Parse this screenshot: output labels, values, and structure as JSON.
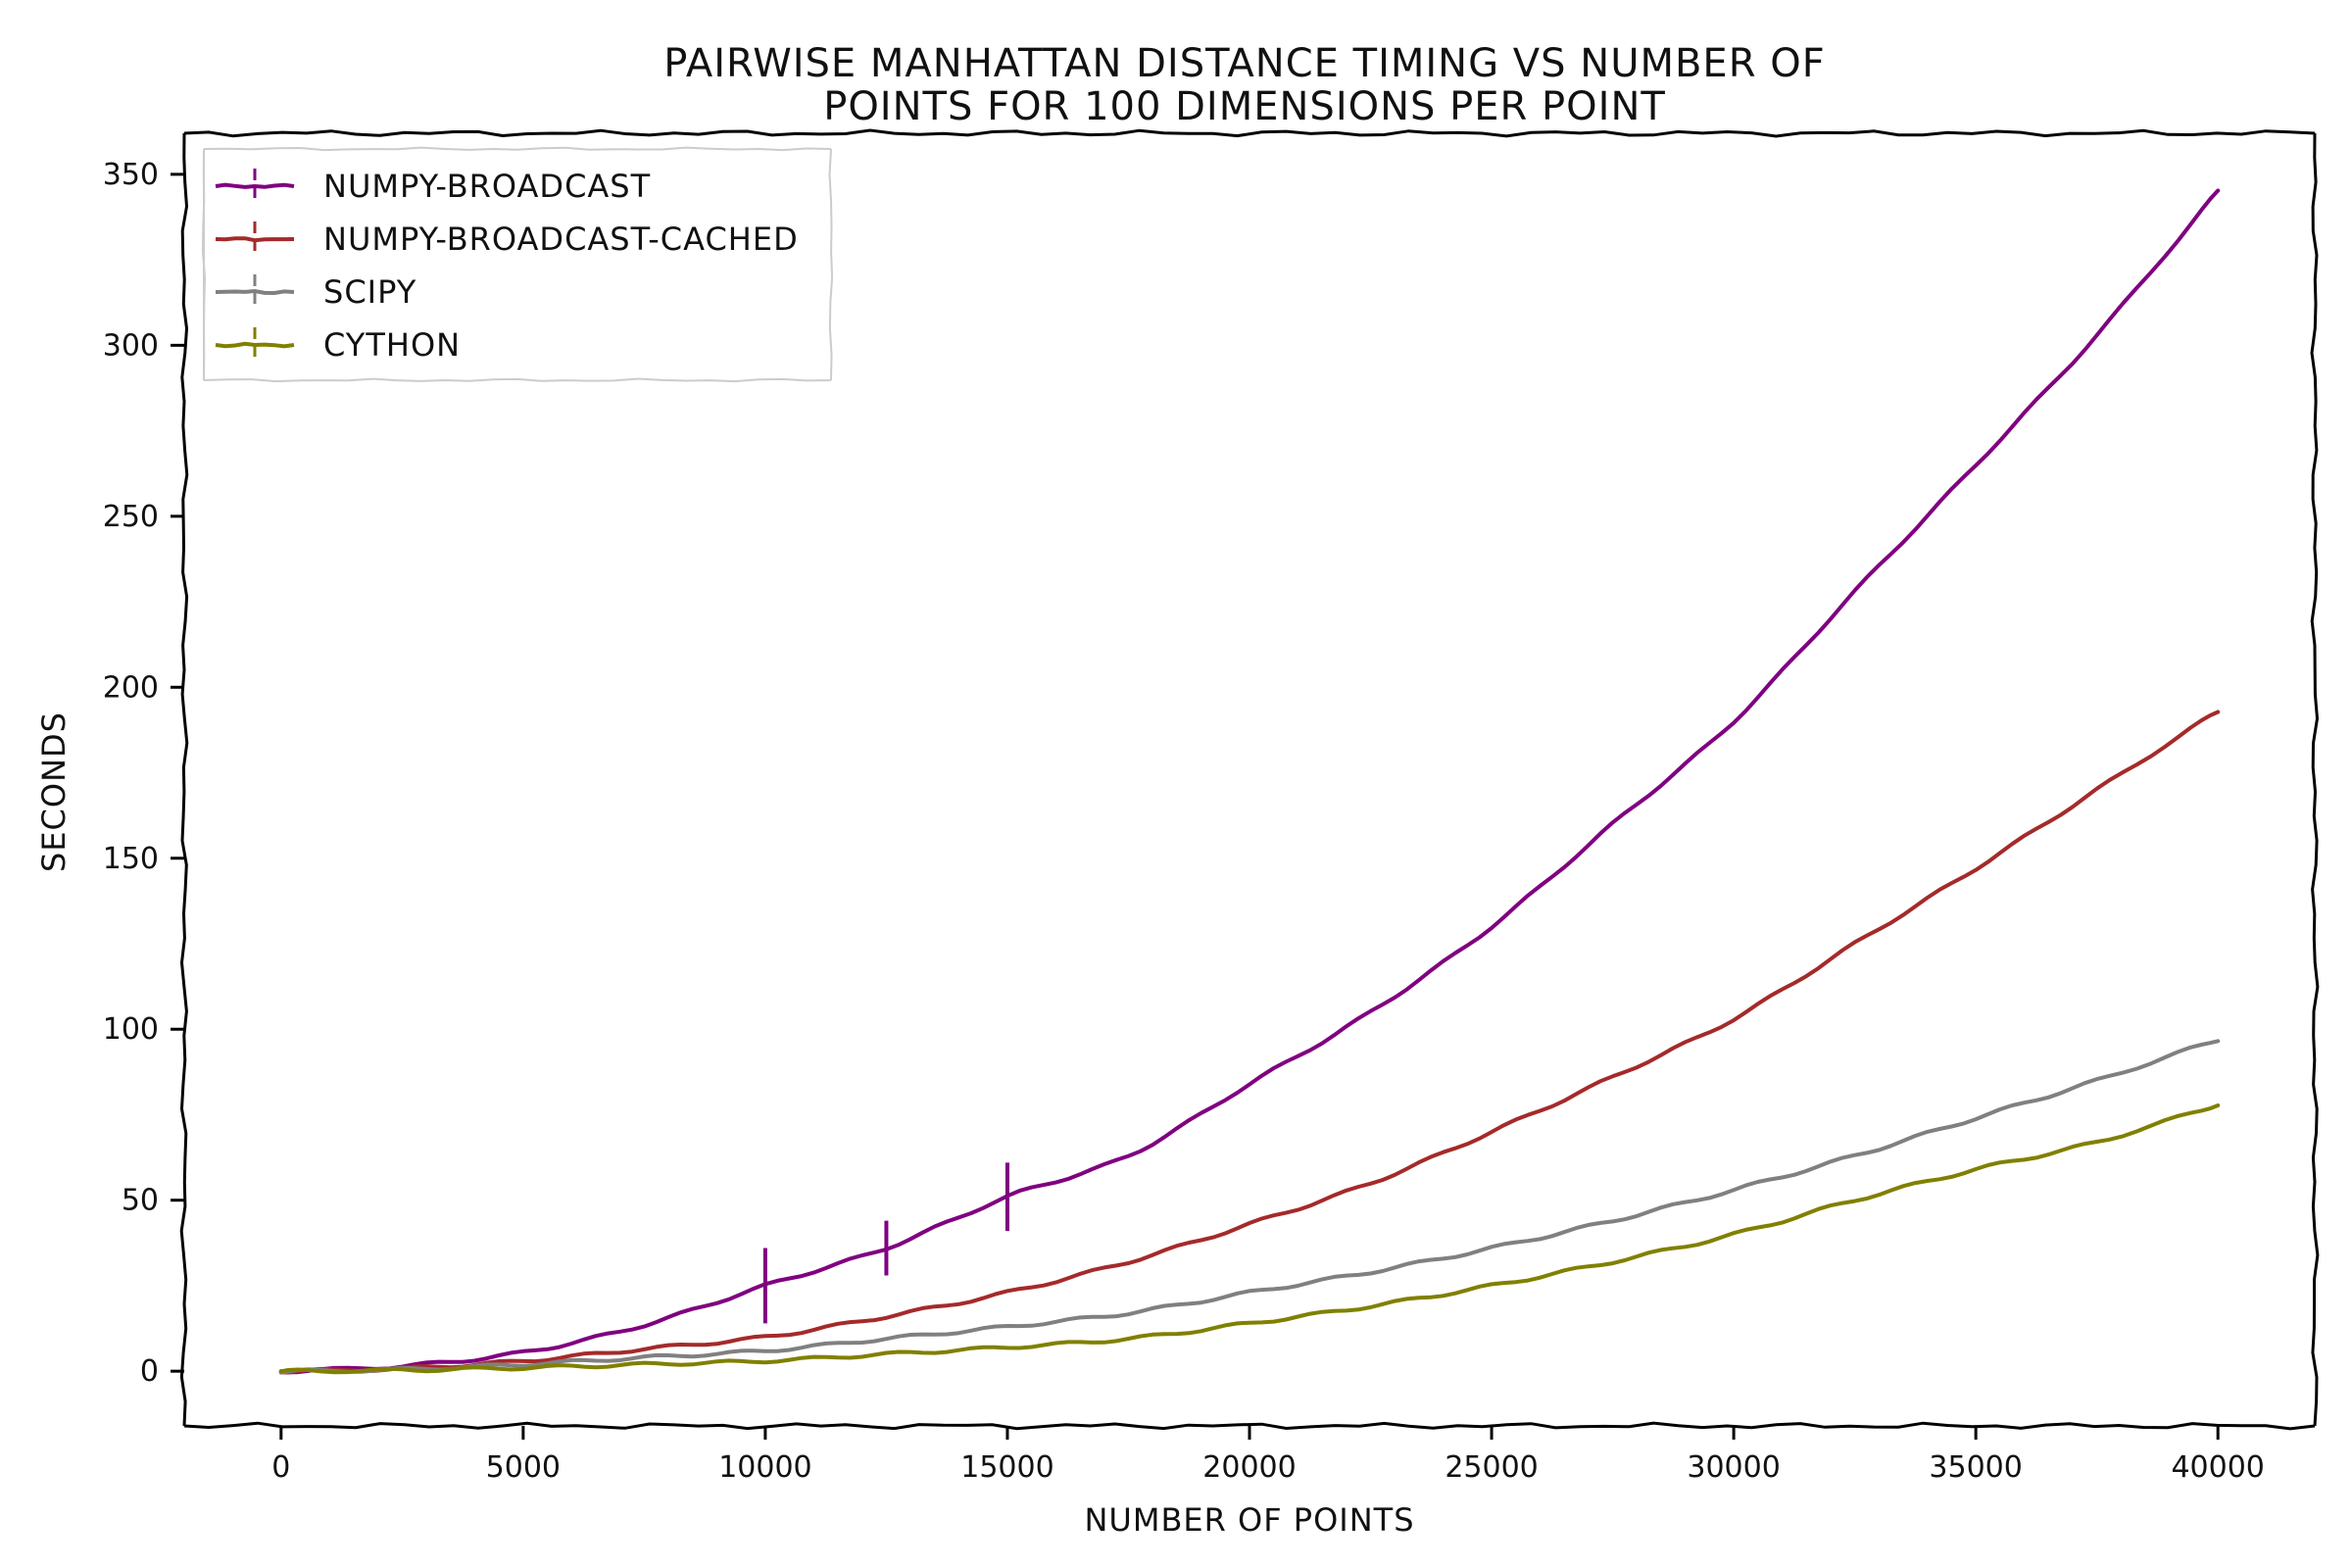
{
  "chart_data": {
    "type": "line",
    "title_lines": [
      "Pairwise Manhattan Distance Timing vs Number of",
      "Points for 100 Dimensions per Point"
    ],
    "xlabel": "Number of Points",
    "ylabel": "Seconds",
    "xlim": [
      -2000,
      42000
    ],
    "ylim": [
      -16,
      362
    ],
    "xticks": [
      0,
      5000,
      10000,
      15000,
      20000,
      25000,
      30000,
      35000,
      40000
    ],
    "yticks": [
      0,
      50,
      100,
      150,
      200,
      250,
      300,
      350
    ],
    "legend_position": "top-left",
    "x": [
      0,
      2500,
      5000,
      7500,
      10000,
      12500,
      15000,
      17500,
      20000,
      22500,
      25000,
      27500,
      30000,
      32500,
      35000,
      37500,
      40000
    ],
    "series": [
      {
        "name": "numpy-broadcast",
        "color": "#800080",
        "values": [
          0,
          1.5,
          5.5,
          13.5,
          25,
          36,
          51,
          63,
          84,
          105,
          130,
          160,
          190,
          228,
          265,
          303,
          345
        ],
        "error_bars": [
          {
            "x": 10000,
            "y": 25,
            "err": 11
          },
          {
            "x": 12500,
            "y": 36,
            "err": 8
          },
          {
            "x": 15000,
            "y": 51,
            "err": 10
          }
        ]
      },
      {
        "name": "numpy-broadcast-cached",
        "color": "#a52a2a",
        "values": [
          0,
          0.8,
          3,
          6.5,
          10,
          16,
          23,
          32,
          43,
          55,
          70,
          86,
          103,
          125,
          147,
          170,
          193
        ]
      },
      {
        "name": "scipy",
        "color": "#808080",
        "values": [
          0,
          0.5,
          2,
          4,
          6,
          9.5,
          13,
          17,
          23,
          29,
          36,
          44,
          53,
          63,
          74,
          85,
          97
        ]
      },
      {
        "name": "cython",
        "color": "#808000",
        "values": [
          0,
          0.3,
          1,
          2,
          3,
          5,
          7,
          9.5,
          14,
          19,
          25,
          32,
          40,
          50,
          59,
          67,
          78
        ]
      }
    ]
  }
}
